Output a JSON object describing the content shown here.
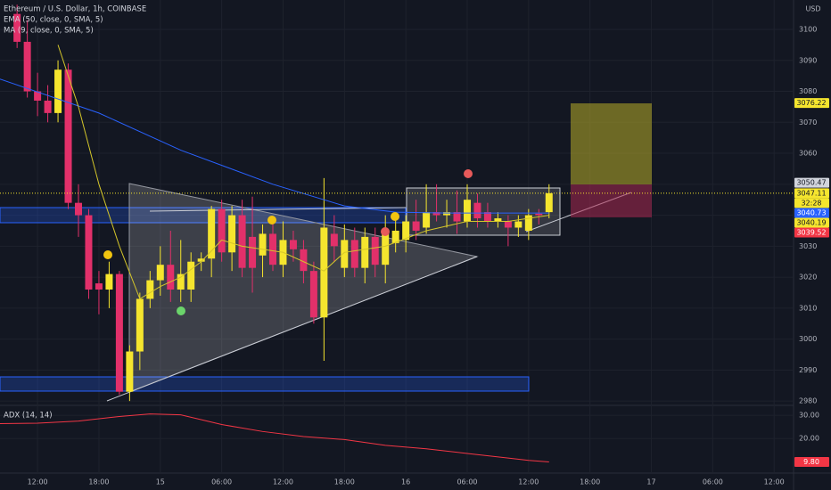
{
  "chart_data": {
    "type": "candlestick",
    "title": "Ethereum / U.S. Dollar, 1h, COINBASE",
    "currency": "USD",
    "up_color": "#f5e52e",
    "down_color": "#e2306a",
    "x": [
      -2,
      -1,
      0,
      1,
      2,
      3,
      4,
      5,
      6,
      7,
      8,
      9,
      10,
      11,
      12,
      13,
      14,
      15,
      16,
      17,
      18,
      19,
      20,
      21,
      22,
      23,
      24,
      25,
      26,
      27,
      28,
      29,
      30,
      31,
      32,
      33,
      34,
      35,
      36,
      37,
      38,
      39,
      40,
      41,
      42,
      43,
      44,
      45,
      46,
      47,
      48,
      49,
      50
    ],
    "open": [
      3105,
      3096,
      3080,
      3077,
      3073,
      3087,
      3044,
      3040,
      3018,
      3016,
      3021,
      2983,
      2996,
      3013,
      3019,
      3024,
      3016,
      3016,
      3025,
      3026,
      3042,
      3028,
      3040,
      3033,
      3027,
      3034,
      3024,
      3032,
      3029,
      3022,
      3007,
      3034,
      3023,
      3032,
      3023,
      3033,
      3024,
      3031,
      3032,
      3038,
      3036,
      3041,
      3040,
      3041,
      3038,
      3044,
      3041,
      3038,
      3038,
      3036,
      3035,
      3040.5,
      3041
    ],
    "high": [
      3108,
      3103,
      3086,
      3082,
      3090,
      3089,
      3050,
      3042,
      3022,
      3025,
      3022,
      2998,
      3015,
      3022,
      3030,
      3035,
      3032,
      3028,
      3028,
      3043,
      3045,
      3043,
      3045,
      3046,
      3037,
      3038,
      3038,
      3035,
      3032,
      3025,
      3052,
      3040,
      3037,
      3036,
      3036,
      3036,
      3040,
      3040,
      3040,
      3045,
      3050,
      3050,
      3045,
      3048,
      3050,
      3047,
      3044,
      3041,
      3040,
      3040,
      3042,
      3042,
      3050
    ],
    "low": [
      3094,
      3078,
      3072,
      3070,
      3070,
      3042,
      3033,
      3013,
      3008,
      3010,
      2982,
      2980,
      2990,
      3010,
      3014,
      3012,
      3012,
      3012,
      3022,
      3020,
      3025,
      3022,
      3020,
      3015,
      3020,
      3022,
      3020,
      3025,
      3018,
      3005,
      2993,
      3025,
      3020,
      3020,
      3018,
      3020,
      3018,
      3028,
      3028,
      3032,
      3034,
      3038,
      3036,
      3034,
      3036,
      3036,
      3036,
      3036,
      3030,
      3033,
      3032,
      3037,
      3039
    ],
    "close": [
      3096,
      3080,
      3077,
      3073,
      3087,
      3044,
      3040,
      3016,
      3016,
      3021,
      2983,
      2996,
      3013,
      3019,
      3024,
      3016,
      3021,
      3025,
      3026,
      3042,
      3028,
      3040,
      3023,
      3023,
      3034,
      3024,
      3032,
      3029,
      3022,
      3007,
      3036,
      3030,
      3032,
      3023,
      3033,
      3024,
      3035,
      3035,
      3038,
      3035,
      3041,
      3040,
      3041,
      3038,
      3045,
      3039,
      3038,
      3039,
      3036,
      3038,
      3040,
      3040,
      3047.11
    ],
    "lines": [
      {
        "name": "EMA (50, close, 0, SMA, 5)",
        "color": "#2962ff",
        "x": [
          -3.7,
          6,
          14,
          23,
          30,
          35,
          40,
          50
        ],
        "values": [
          3084,
          3073,
          3061,
          3050,
          3043,
          3041,
          3040.7,
          3040.7
        ]
      },
      {
        "name": "MA (9, close, 0, SMA, 5)",
        "color": "#d4c62a",
        "x": [
          2,
          4,
          6,
          8,
          10,
          12,
          14,
          16,
          18,
          20,
          24,
          28,
          30,
          34,
          38,
          42,
          46,
          50
        ],
        "values": [
          3095,
          3075,
          3050,
          3030,
          3013,
          3017,
          3020,
          3025,
          3032,
          3030,
          3028,
          3022,
          3028,
          3030,
          3035,
          3038,
          3038,
          3040
        ]
      }
    ],
    "xlim": [
      -3.67,
      73.9
    ],
    "xticks": [
      {
        "value": 0,
        "label": "12:00"
      },
      {
        "value": 6,
        "label": "18:00"
      },
      {
        "value": 12,
        "label": "15"
      },
      {
        "value": 18,
        "label": "06:00"
      },
      {
        "value": 24,
        "label": "12:00"
      },
      {
        "value": 30,
        "label": "18:00"
      },
      {
        "value": 36,
        "label": "16"
      },
      {
        "value": 42,
        "label": "06:00"
      },
      {
        "value": 48,
        "label": "12:00"
      },
      {
        "value": 54,
        "label": "18:00"
      },
      {
        "value": 60,
        "label": "17"
      },
      {
        "value": 66,
        "label": "06:00"
      },
      {
        "value": 72,
        "label": "12:00"
      }
    ],
    "ylim": [
      2978.6,
      3109.5
    ],
    "yticks": [
      2980,
      2990,
      3000,
      3010,
      3020,
      3030,
      3040,
      3050,
      3060,
      3070,
      3080,
      3090,
      3100
    ],
    "price_tags": [
      {
        "value": 3076.22,
        "color": "#f5e52e"
      },
      {
        "value": 3050.47,
        "color": "#d1d4dc"
      },
      {
        "value": 3040.73,
        "color": "#2962ff"
      },
      {
        "value": 3040.19,
        "color": "#f5e52e"
      },
      {
        "value": 3039.52,
        "color": "#f23645"
      }
    ],
    "last_price": 3047.11,
    "countdown": "32:28",
    "adx": {
      "name": "ADX (14, 14)",
      "color": "#f23645",
      "x": [
        -3.7,
        0,
        4,
        8,
        11,
        14,
        18,
        22,
        26,
        30,
        34,
        38,
        42,
        46,
        48,
        50
      ],
      "values": [
        26.4,
        26.6,
        27.5,
        29.5,
        30.6,
        30.2,
        26,
        23,
        20.8,
        19.5,
        17,
        15.5,
        13.5,
        11.5,
        10.5,
        9.8
      ],
      "y2lim": [
        5,
        34.3
      ],
      "y2ticks": [
        {
          "value": 20,
          "label": "20.00"
        },
        {
          "value": 30,
          "label": "30.00"
        }
      ],
      "last": {
        "value": 9.8,
        "label": "9.80"
      }
    }
  }
}
